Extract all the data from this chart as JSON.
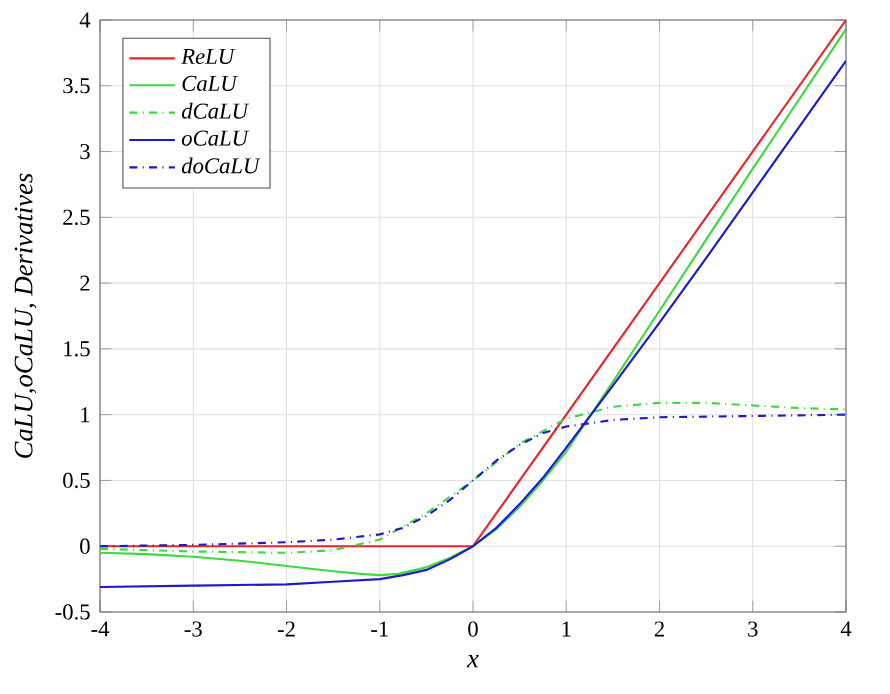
{
  "chart_data": {
    "type": "line",
    "xlabel": "x",
    "ylabel": "CaLU,oCaLU, Derivatives",
    "xlim": [
      -4,
      4
    ],
    "ylim": [
      -0.5,
      4
    ],
    "xticks": [
      -4,
      -3,
      -2,
      -1,
      0,
      1,
      2,
      3,
      4
    ],
    "yticks": [
      -0.5,
      0,
      0.5,
      1,
      1.5,
      2,
      2.5,
      3,
      3.5,
      4
    ],
    "grid": true,
    "legend": "top left",
    "series": [
      {
        "name": "ReLU",
        "color": "#e8262a",
        "line_style": "solid",
        "x": [
          -4,
          0,
          4
        ],
        "values": [
          0,
          0,
          4
        ]
      },
      {
        "name": "CaLU",
        "color": "#3ed93e",
        "line_style": "solid",
        "x": [
          -4,
          -3.5,
          -3,
          -2.5,
          -2,
          -1.5,
          -1.2,
          -1,
          -0.8,
          -0.5,
          -0.25,
          0,
          0.25,
          0.5,
          0.75,
          1,
          1.5,
          2,
          2.5,
          3,
          3.5,
          4
        ],
        "values": [
          -0.05,
          -0.06,
          -0.08,
          -0.11,
          -0.15,
          -0.19,
          -0.21,
          -0.22,
          -0.21,
          -0.16,
          -0.09,
          0,
          0.13,
          0.3,
          0.5,
          0.72,
          1.25,
          1.79,
          2.33,
          2.87,
          3.4,
          3.93
        ]
      },
      {
        "name": "dCaLU",
        "color": "#3ed93e",
        "line_style": "dashdot",
        "x": [
          -4,
          -3,
          -2,
          -1.5,
          -1,
          -0.5,
          0,
          0.5,
          1,
          1.5,
          2,
          2.5,
          3,
          3.5,
          4
        ],
        "values": [
          -0.02,
          -0.04,
          -0.05,
          -0.03,
          0.05,
          0.25,
          0.5,
          0.78,
          0.97,
          1.06,
          1.09,
          1.09,
          1.07,
          1.05,
          1.04
        ]
      },
      {
        "name": "oCaLU",
        "color": "#1a1ad0",
        "line_style": "solid",
        "x": [
          -4,
          -3,
          -2,
          -1.5,
          -1,
          -0.75,
          -0.5,
          -0.25,
          0,
          0.25,
          0.5,
          0.75,
          1,
          1.5,
          2,
          2.5,
          3,
          3.5,
          4
        ],
        "values": [
          -0.31,
          -0.3,
          -0.29,
          -0.27,
          -0.25,
          -0.22,
          -0.18,
          -0.1,
          0,
          0.14,
          0.32,
          0.52,
          0.75,
          1.22,
          1.7,
          2.19,
          2.69,
          3.19,
          3.69
        ]
      },
      {
        "name": "doCaLU",
        "color": "#1a1ad0",
        "line_style": "dashdot",
        "x": [
          -4,
          -3,
          -2,
          -1.5,
          -1,
          -0.75,
          -0.5,
          -0.25,
          0,
          0.25,
          0.5,
          0.75,
          1,
          1.5,
          2,
          3,
          4
        ],
        "values": [
          0,
          0.01,
          0.03,
          0.05,
          0.09,
          0.14,
          0.23,
          0.35,
          0.5,
          0.65,
          0.77,
          0.86,
          0.91,
          0.96,
          0.98,
          0.99,
          1.0
        ]
      }
    ]
  }
}
